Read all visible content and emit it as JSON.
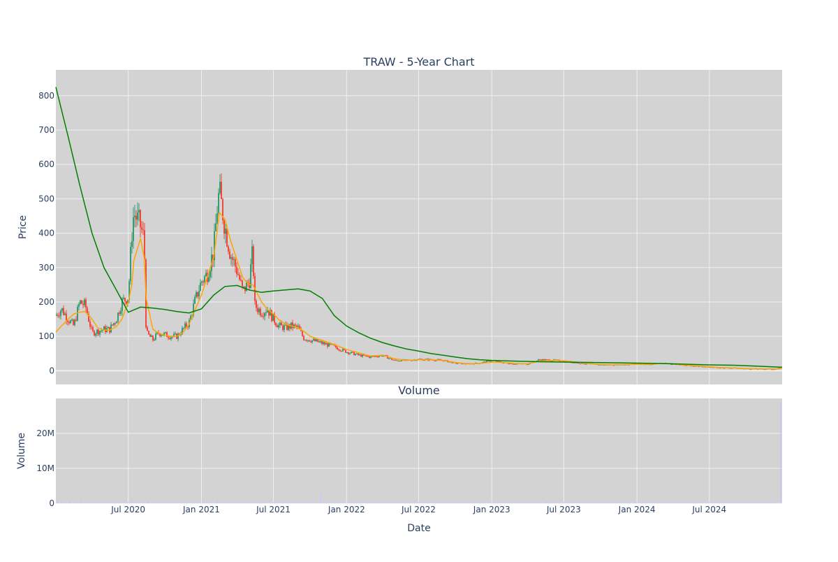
{
  "chart_data": {
    "type": "candlestick",
    "title": "TRAW - 5-Year Chart",
    "colors": {
      "up": "#3d9970",
      "down": "#ef4b3c",
      "ma_short": "#ffa500",
      "ma_long": "#008000",
      "plot_bg": "#d3d3d3",
      "grid": "#eef0f4",
      "volume_bar": "#c8ccea"
    },
    "grid": true,
    "legend": "none",
    "x_range": [
      "2020-01-01",
      "2024-12-31"
    ],
    "x_ticks": [
      {
        "date": "2020-07-01",
        "label": "Jul 2020"
      },
      {
        "date": "2021-01-01",
        "label": "Jan 2021"
      },
      {
        "date": "2021-07-01",
        "label": "Jul 2021"
      },
      {
        "date": "2022-01-01",
        "label": "Jan 2022"
      },
      {
        "date": "2022-07-01",
        "label": "Jul 2022"
      },
      {
        "date": "2023-01-01",
        "label": "Jan 2023"
      },
      {
        "date": "2023-07-01",
        "label": "Jul 2023"
      },
      {
        "date": "2024-01-01",
        "label": "Jan 2024"
      },
      {
        "date": "2024-07-01",
        "label": "Jul 2024"
      }
    ],
    "xlabel": "Date",
    "price_panel": {
      "ylabel": "Price",
      "ylim": [
        -40,
        875
      ],
      "y_ticks": [
        0,
        100,
        200,
        300,
        400,
        500,
        600,
        700,
        800
      ],
      "close_series": [
        [
          "2020-01-01",
          160
        ],
        [
          "2020-01-15",
          180
        ],
        [
          "2020-02-01",
          150
        ],
        [
          "2020-02-15",
          130
        ],
        [
          "2020-03-01",
          200
        ],
        [
          "2020-03-15",
          190
        ],
        [
          "2020-04-01",
          110
        ],
        [
          "2020-04-15",
          115
        ],
        [
          "2020-05-01",
          120
        ],
        [
          "2020-05-15",
          120
        ],
        [
          "2020-06-01",
          150
        ],
        [
          "2020-06-15",
          200
        ],
        [
          "2020-07-01",
          215
        ],
        [
          "2020-07-10",
          400
        ],
        [
          "2020-07-15",
          460
        ],
        [
          "2020-08-01",
          420
        ],
        [
          "2020-08-10",
          380
        ],
        [
          "2020-08-15",
          110
        ],
        [
          "2020-09-01",
          90
        ],
        [
          "2020-09-15",
          110
        ],
        [
          "2020-10-01",
          105
        ],
        [
          "2020-10-15",
          100
        ],
        [
          "2020-11-01",
          100
        ],
        [
          "2020-11-15",
          120
        ],
        [
          "2020-12-01",
          140
        ],
        [
          "2020-12-15",
          200
        ],
        [
          "2021-01-01",
          260
        ],
        [
          "2021-01-15",
          280
        ],
        [
          "2021-02-01",
          350
        ],
        [
          "2021-02-10",
          480
        ],
        [
          "2021-02-15",
          520
        ],
        [
          "2021-03-01",
          420
        ],
        [
          "2021-03-15",
          340
        ],
        [
          "2021-04-01",
          290
        ],
        [
          "2021-04-15",
          230
        ],
        [
          "2021-05-01",
          260
        ],
        [
          "2021-05-10",
          350
        ],
        [
          "2021-05-15",
          190
        ],
        [
          "2021-06-01",
          170
        ],
        [
          "2021-06-15",
          180
        ],
        [
          "2021-07-01",
          150
        ],
        [
          "2021-07-15",
          130
        ],
        [
          "2021-08-01",
          125
        ],
        [
          "2021-08-15",
          130
        ],
        [
          "2021-09-01",
          125
        ],
        [
          "2021-09-15",
          95
        ],
        [
          "2021-10-01",
          90
        ],
        [
          "2021-11-01",
          80
        ],
        [
          "2021-12-01",
          70
        ],
        [
          "2022-01-01",
          55
        ],
        [
          "2022-02-01",
          45
        ],
        [
          "2022-03-01",
          40
        ],
        [
          "2022-04-01",
          45
        ],
        [
          "2022-05-01",
          30
        ],
        [
          "2022-06-01",
          30
        ],
        [
          "2022-07-01",
          33
        ],
        [
          "2022-08-01",
          32
        ],
        [
          "2022-09-01",
          30
        ],
        [
          "2022-10-01",
          22
        ],
        [
          "2022-11-01",
          20
        ],
        [
          "2022-12-01",
          22
        ],
        [
          "2023-01-01",
          30
        ],
        [
          "2023-02-01",
          23
        ],
        [
          "2023-03-01",
          20
        ],
        [
          "2023-04-01",
          20
        ],
        [
          "2023-05-01",
          32
        ],
        [
          "2023-06-01",
          30
        ],
        [
          "2023-07-01",
          28
        ],
        [
          "2023-08-01",
          23
        ],
        [
          "2023-09-01",
          20
        ],
        [
          "2023-10-01",
          17
        ],
        [
          "2023-11-01",
          17
        ],
        [
          "2023-12-01",
          18
        ],
        [
          "2024-01-01",
          20
        ],
        [
          "2024-02-01",
          18
        ],
        [
          "2024-03-01",
          22
        ],
        [
          "2024-04-01",
          20
        ],
        [
          "2024-05-01",
          15
        ],
        [
          "2024-06-01",
          14
        ],
        [
          "2024-07-01",
          10
        ],
        [
          "2024-08-01",
          9
        ],
        [
          "2024-09-01",
          8
        ],
        [
          "2024-10-01",
          6
        ],
        [
          "2024-11-01",
          5
        ],
        [
          "2024-12-20",
          5
        ],
        [
          "2024-12-31",
          12
        ]
      ],
      "ma_short": [
        [
          "2020-01-01",
          112
        ],
        [
          "2020-01-15",
          130
        ],
        [
          "2020-02-01",
          150
        ],
        [
          "2020-02-15",
          165
        ],
        [
          "2020-03-01",
          170
        ],
        [
          "2020-03-15",
          172
        ],
        [
          "2020-04-01",
          150
        ],
        [
          "2020-04-15",
          125
        ],
        [
          "2020-05-01",
          118
        ],
        [
          "2020-05-15",
          118
        ],
        [
          "2020-06-01",
          128
        ],
        [
          "2020-06-15",
          150
        ],
        [
          "2020-07-01",
          200
        ],
        [
          "2020-07-10",
          250
        ],
        [
          "2020-07-15",
          320
        ],
        [
          "2020-08-01",
          385
        ],
        [
          "2020-08-10",
          330
        ],
        [
          "2020-08-15",
          210
        ],
        [
          "2020-09-01",
          120
        ],
        [
          "2020-09-15",
          110
        ],
        [
          "2020-10-01",
          103
        ],
        [
          "2020-10-15",
          100
        ],
        [
          "2020-11-01",
          100
        ],
        [
          "2020-11-15",
          110
        ],
        [
          "2020-12-01",
          135
        ],
        [
          "2020-12-15",
          175
        ],
        [
          "2021-01-01",
          220
        ],
        [
          "2021-01-15",
          270
        ],
        [
          "2021-02-01",
          330
        ],
        [
          "2021-02-10",
          410
        ],
        [
          "2021-02-15",
          460
        ],
        [
          "2021-03-01",
          440
        ],
        [
          "2021-03-15",
          380
        ],
        [
          "2021-04-01",
          320
        ],
        [
          "2021-04-15",
          270
        ],
        [
          "2021-05-01",
          250
        ],
        [
          "2021-05-10",
          250
        ],
        [
          "2021-05-15",
          240
        ],
        [
          "2021-06-01",
          200
        ],
        [
          "2021-06-15",
          180
        ],
        [
          "2021-07-01",
          165
        ],
        [
          "2021-07-15",
          148
        ],
        [
          "2021-08-01",
          135
        ],
        [
          "2021-08-15",
          130
        ],
        [
          "2021-09-01",
          125
        ],
        [
          "2021-09-15",
          115
        ],
        [
          "2021-10-01",
          100
        ],
        [
          "2021-11-01",
          88
        ],
        [
          "2021-12-01",
          76
        ],
        [
          "2022-01-01",
          62
        ],
        [
          "2022-02-01",
          52
        ],
        [
          "2022-03-01",
          43
        ],
        [
          "2022-04-01",
          45
        ],
        [
          "2022-05-01",
          35
        ],
        [
          "2022-06-01",
          30
        ],
        [
          "2022-07-01",
          32
        ],
        [
          "2022-08-01",
          32
        ],
        [
          "2022-09-01",
          30
        ],
        [
          "2022-10-01",
          24
        ],
        [
          "2022-11-01",
          20
        ],
        [
          "2022-12-01",
          21
        ],
        [
          "2023-01-01",
          25
        ],
        [
          "2023-02-01",
          24
        ],
        [
          "2023-03-01",
          21
        ],
        [
          "2023-04-01",
          20
        ],
        [
          "2023-05-01",
          28
        ],
        [
          "2023-06-01",
          30
        ],
        [
          "2023-07-01",
          29
        ],
        [
          "2023-08-01",
          25
        ],
        [
          "2023-09-01",
          21
        ],
        [
          "2023-10-01",
          18
        ],
        [
          "2023-11-01",
          17
        ],
        [
          "2023-12-01",
          18
        ],
        [
          "2024-01-01",
          19
        ],
        [
          "2024-02-01",
          18
        ],
        [
          "2024-03-01",
          21
        ],
        [
          "2024-04-01",
          20
        ],
        [
          "2024-05-01",
          16
        ],
        [
          "2024-06-01",
          14
        ],
        [
          "2024-07-01",
          11
        ],
        [
          "2024-08-01",
          9
        ],
        [
          "2024-09-01",
          8
        ],
        [
          "2024-10-01",
          6
        ],
        [
          "2024-11-01",
          5
        ],
        [
          "2024-12-20",
          5
        ],
        [
          "2024-12-31",
          7
        ]
      ],
      "ma_long": [
        [
          "2020-01-01",
          825
        ],
        [
          "2020-02-01",
          680
        ],
        [
          "2020-03-01",
          540
        ],
        [
          "2020-04-01",
          400
        ],
        [
          "2020-05-01",
          300
        ],
        [
          "2020-06-01",
          235
        ],
        [
          "2020-07-01",
          170
        ],
        [
          "2020-08-01",
          185
        ],
        [
          "2020-09-01",
          182
        ],
        [
          "2020-10-01",
          178
        ],
        [
          "2020-11-01",
          172
        ],
        [
          "2020-12-01",
          168
        ],
        [
          "2021-01-01",
          180
        ],
        [
          "2021-02-01",
          220
        ],
        [
          "2021-03-01",
          245
        ],
        [
          "2021-04-01",
          248
        ],
        [
          "2021-05-01",
          235
        ],
        [
          "2021-06-01",
          228
        ],
        [
          "2021-07-01",
          232
        ],
        [
          "2021-08-01",
          235
        ],
        [
          "2021-09-01",
          238
        ],
        [
          "2021-10-01",
          232
        ],
        [
          "2021-11-01",
          210
        ],
        [
          "2021-12-01",
          160
        ],
        [
          "2022-01-01",
          130
        ],
        [
          "2022-02-01",
          110
        ],
        [
          "2022-03-01",
          95
        ],
        [
          "2022-04-01",
          82
        ],
        [
          "2022-05-01",
          72
        ],
        [
          "2022-06-01",
          63
        ],
        [
          "2022-07-01",
          57
        ],
        [
          "2022-08-01",
          50
        ],
        [
          "2022-09-01",
          45
        ],
        [
          "2022-10-01",
          40
        ],
        [
          "2022-11-01",
          35
        ],
        [
          "2022-12-01",
          32
        ],
        [
          "2023-01-01",
          30
        ],
        [
          "2023-03-01",
          28
        ],
        [
          "2023-05-01",
          26
        ],
        [
          "2023-07-01",
          25
        ],
        [
          "2023-09-01",
          24
        ],
        [
          "2023-11-01",
          23
        ],
        [
          "2024-01-01",
          22
        ],
        [
          "2024-03-01",
          21
        ],
        [
          "2024-05-01",
          19
        ],
        [
          "2024-07-01",
          17
        ],
        [
          "2024-09-01",
          16
        ],
        [
          "2024-11-01",
          13
        ],
        [
          "2024-12-31",
          10
        ]
      ]
    },
    "volume_panel": {
      "title": "Volume",
      "ylabel": "Volume",
      "ylim": [
        0,
        30000000
      ],
      "y_ticks": [
        {
          "value": 0,
          "label": "0"
        },
        {
          "value": 10000000,
          "label": "10M"
        },
        {
          "value": 20000000,
          "label": "20M"
        }
      ],
      "bars": [
        [
          "2020-01-05",
          700000
        ],
        [
          "2020-02-05",
          500000
        ],
        [
          "2020-03-05",
          400000
        ],
        [
          "2020-06-20",
          300000
        ],
        [
          "2020-07-10",
          900000
        ],
        [
          "2020-08-20",
          600000
        ],
        [
          "2021-02-10",
          800000
        ],
        [
          "2021-05-10",
          500000
        ],
        [
          "2021-10-28",
          3000000
        ],
        [
          "2022-01-15",
          200000
        ],
        [
          "2023-05-20",
          200000
        ],
        [
          "2024-12-29",
          29000000
        ]
      ]
    }
  }
}
